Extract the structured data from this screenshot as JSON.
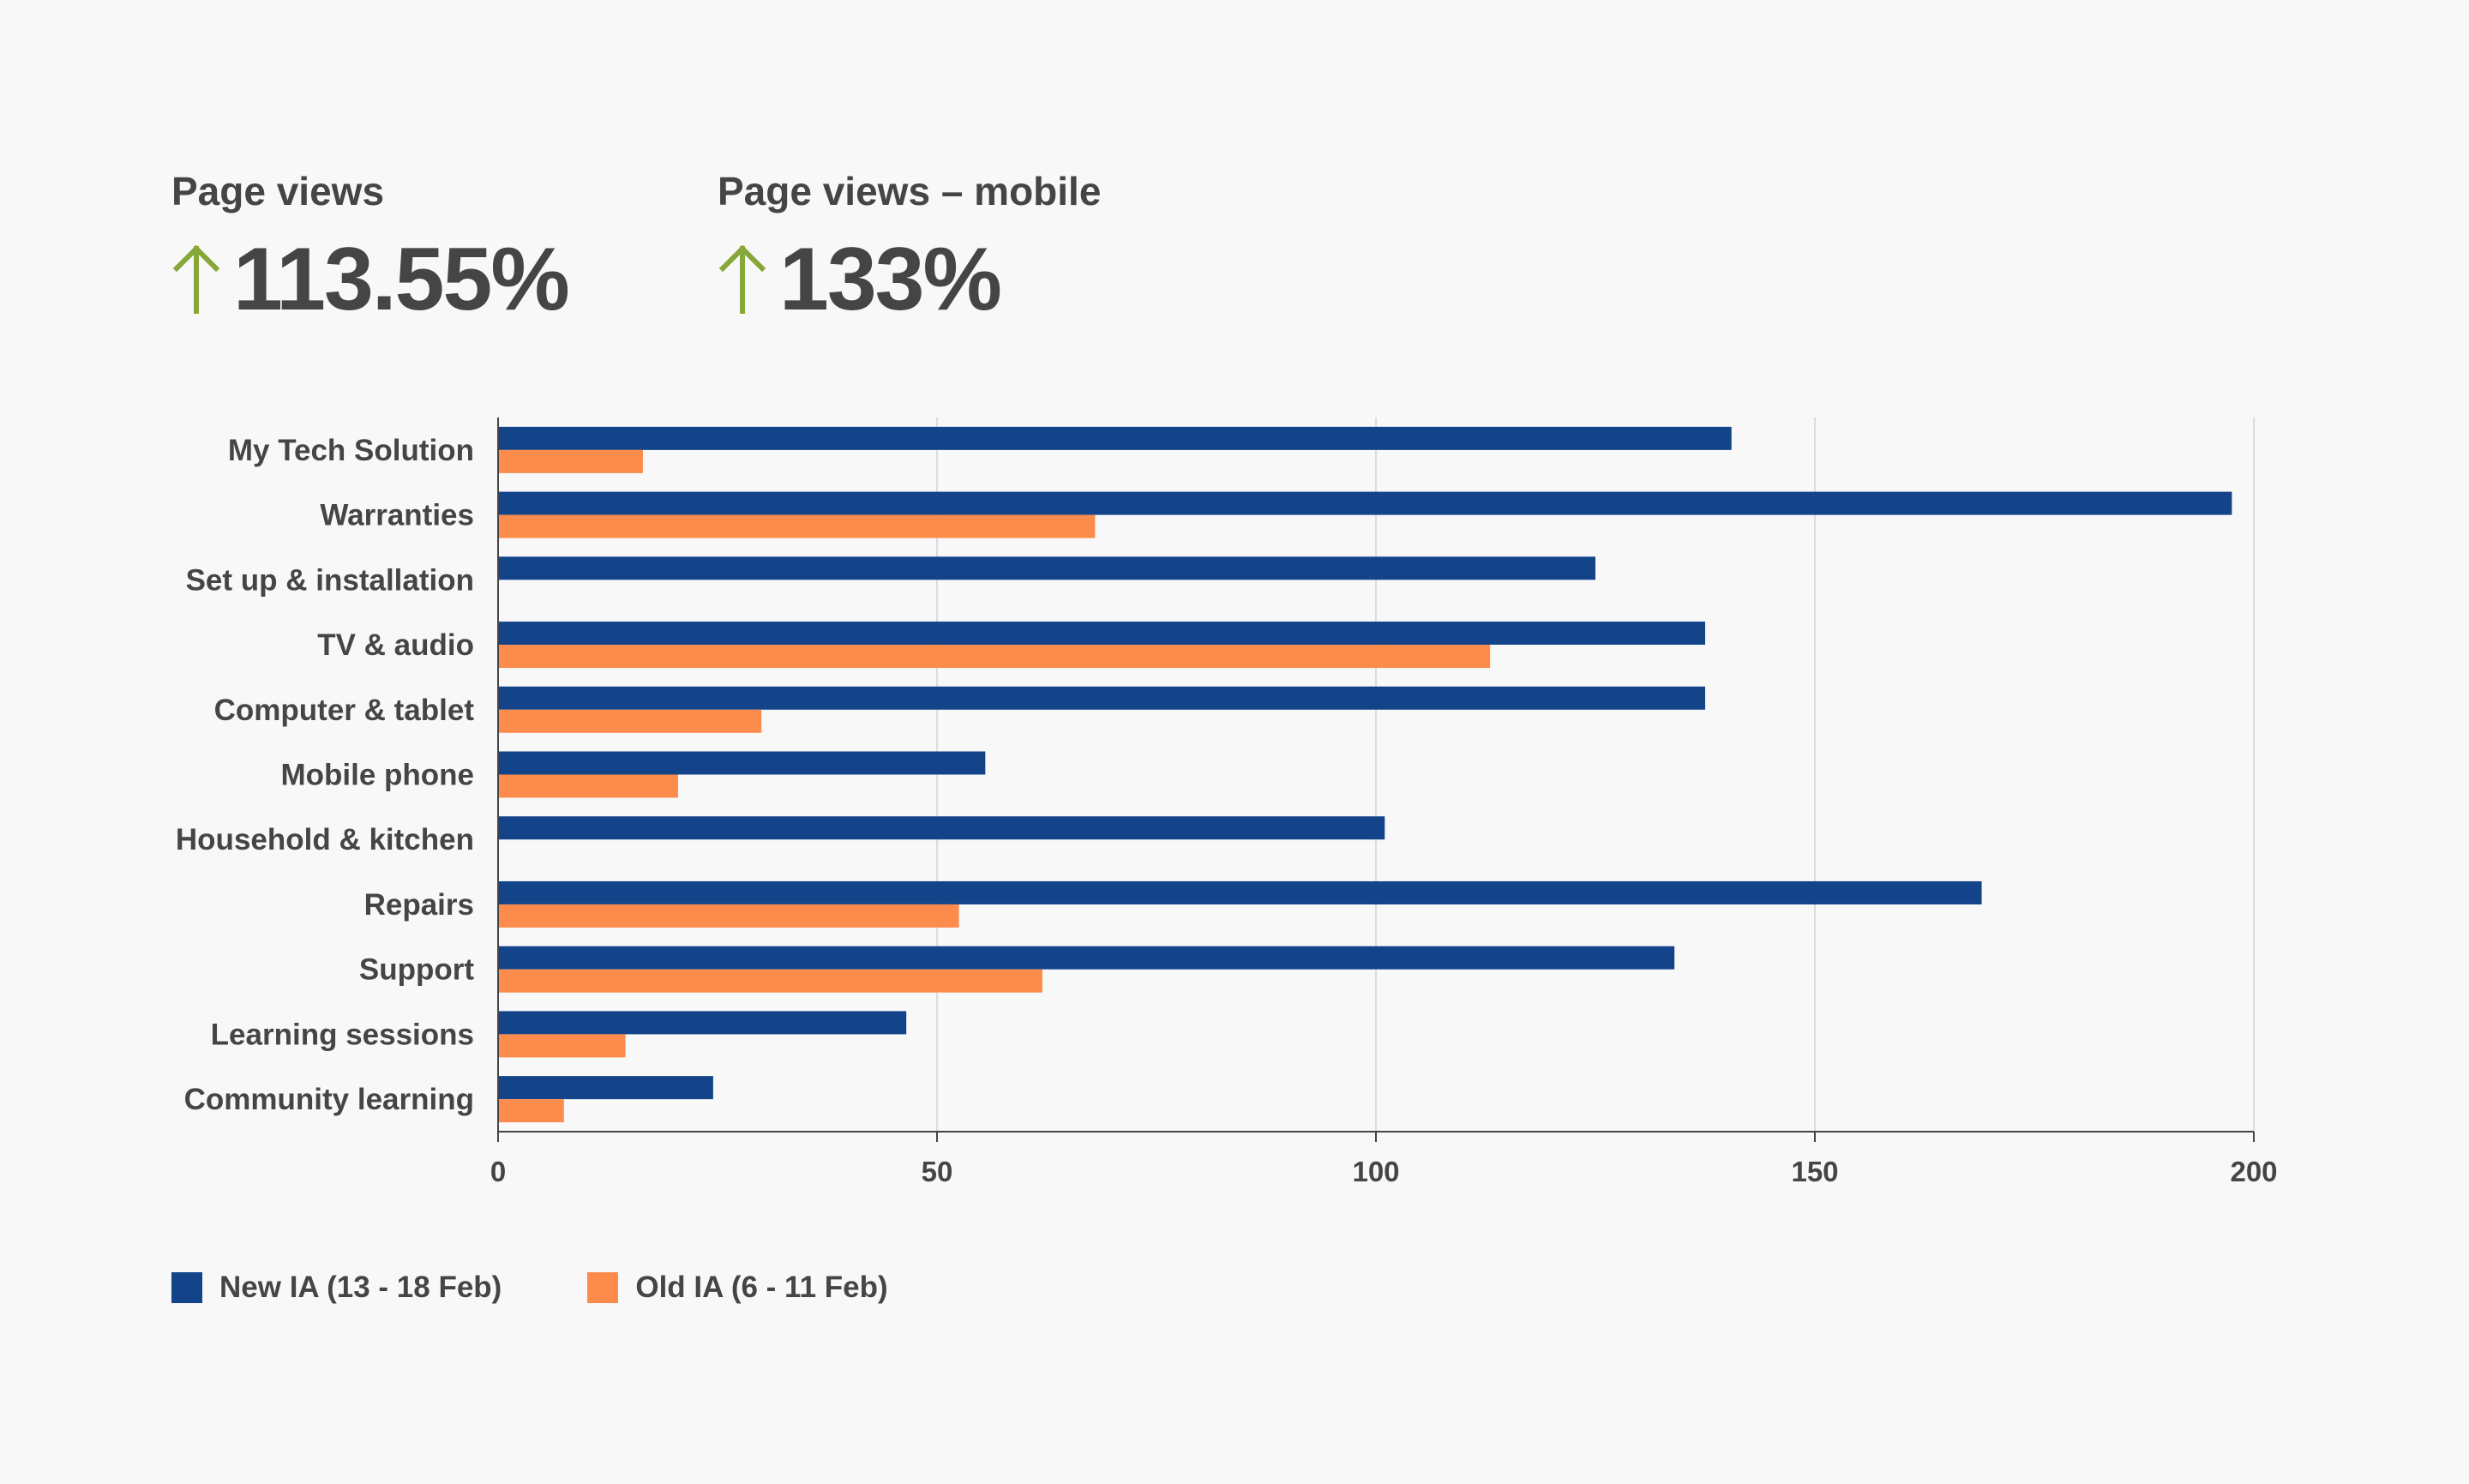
{
  "kpis": [
    {
      "title": "Page views",
      "value": "113.55%",
      "trend_icon": "arrow-up-icon"
    },
    {
      "title": "Page views – mobile",
      "value": "133%",
      "trend_icon": "arrow-up-icon"
    }
  ],
  "colors": {
    "new": "#13448a",
    "old": "#fd8b4c",
    "trend_up": "#86a83a",
    "text": "#454545",
    "grid": "#dcdcdc"
  },
  "legend": {
    "new_label": "New IA (13 - 18 Feb)",
    "old_label": "Old IA (6 - 11 Feb)"
  },
  "chart_data": {
    "type": "bar",
    "orientation": "horizontal",
    "categories": [
      "My Tech Solution",
      "Warranties",
      "Set up & installation",
      "TV & audio",
      "Computer & tablet",
      "Mobile phone",
      "Household & kitchen",
      "Repairs",
      "Support",
      "Learning sessions",
      "Community learning"
    ],
    "series": [
      {
        "name": "New IA (13 - 18 Feb)",
        "color": "#13448a",
        "values": [
          140.5,
          197.5,
          125,
          137.5,
          137.5,
          55.5,
          101,
          169,
          134,
          46.5,
          24.5
        ]
      },
      {
        "name": "Old IA (6 - 11 Feb)",
        "color": "#fd8b4c",
        "values": [
          16.5,
          68,
          0,
          113,
          30,
          20.5,
          0,
          52.5,
          62,
          14.5,
          7.5
        ]
      }
    ],
    "xlim": [
      0,
      200
    ],
    "xticks": [
      0,
      50,
      100,
      150,
      200
    ],
    "xlabel": "",
    "ylabel": "",
    "grid": "vertical",
    "legend_position": "bottom-left"
  }
}
